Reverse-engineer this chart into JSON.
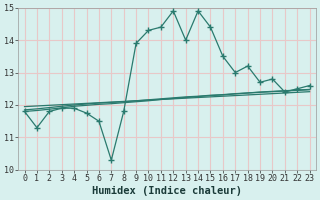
{
  "xlabel": "Humidex (Indice chaleur)",
  "x_values": [
    0,
    1,
    2,
    3,
    4,
    5,
    6,
    7,
    8,
    9,
    10,
    11,
    12,
    13,
    14,
    15,
    16,
    17,
    18,
    19,
    20,
    21,
    22,
    23
  ],
  "line1": [
    11.8,
    11.3,
    11.8,
    11.9,
    11.9,
    11.75,
    11.5,
    10.3,
    11.8,
    13.9,
    14.3,
    14.4,
    14.9,
    14.0,
    14.9,
    14.4,
    13.5,
    13.0,
    13.2,
    12.7,
    12.8,
    12.4,
    12.5,
    12.6
  ],
  "line2": [
    11.95,
    11.97,
    11.99,
    12.01,
    12.03,
    12.05,
    12.07,
    12.09,
    12.11,
    12.13,
    12.15,
    12.17,
    12.19,
    12.21,
    12.23,
    12.25,
    12.27,
    12.29,
    12.31,
    12.33,
    12.35,
    12.37,
    12.39,
    12.41
  ],
  "line3": [
    11.85,
    11.88,
    11.92,
    11.96,
    12.0,
    12.03,
    12.06,
    12.08,
    12.1,
    12.13,
    12.16,
    12.19,
    12.22,
    12.25,
    12.27,
    12.3,
    12.32,
    12.35,
    12.37,
    12.4,
    12.42,
    12.44,
    12.46,
    12.48
  ],
  "line4": [
    11.8,
    11.83,
    11.87,
    11.91,
    11.96,
    11.99,
    12.02,
    12.04,
    12.07,
    12.1,
    12.13,
    12.17,
    12.2,
    12.23,
    12.26,
    12.29,
    12.31,
    12.34,
    12.37,
    12.39,
    12.41,
    12.43,
    12.45,
    12.47
  ],
  "line_color": "#2a7a6e",
  "bg_color": "#d8f0ee",
  "grid_color": "#e8c8c8",
  "ylim": [
    10,
    15
  ],
  "xlim": [
    -0.5,
    23.5
  ],
  "yticks": [
    10,
    11,
    12,
    13,
    14,
    15
  ],
  "xticks": [
    0,
    1,
    2,
    3,
    4,
    5,
    6,
    7,
    8,
    9,
    10,
    11,
    12,
    13,
    14,
    15,
    16,
    17,
    18,
    19,
    20,
    21,
    22,
    23
  ],
  "tick_fontsize": 6.0,
  "xlabel_fontsize": 7.5
}
